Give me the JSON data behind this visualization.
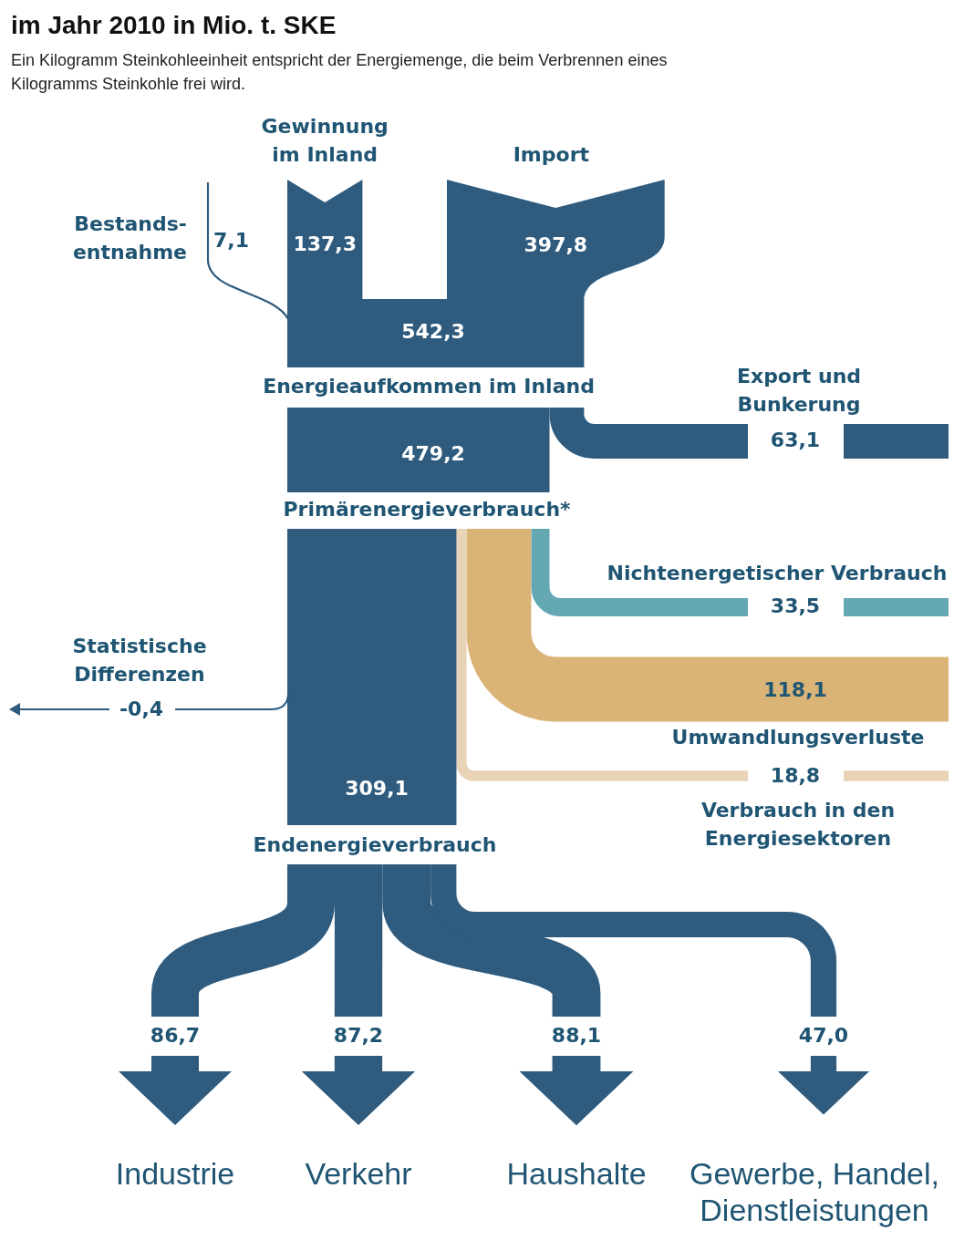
{
  "chart_data": {
    "type": "other",
    "title": "im Jahr 2010 in Mio. t. SKE",
    "subtitle": "Ein Kilogramm Steinkohleeinheit entspricht der Energiemenge, die beim Verbrennen eines Kilogramms Steinkohle frei wird.",
    "categories": [
      "Bestands-\nentnahme",
      "Gewinnung\nim Inland",
      "Import",
      "Energieaufkommen im Inland",
      "Export und\nBunkerung",
      "Primärenergieverbrauch*",
      "Nichtenergetischer Verbrauch",
      "Umwandlungsverluste",
      "Verbrauch in den\nEnergiesektoren",
      "Statistische\nDifferenzen",
      "Endenergieverbrauch",
      "Industrie",
      "Verkehr",
      "Haushalte",
      "Gewerbe, Handel,\nDienstleistungen"
    ],
    "values": [
      7.1,
      137.3,
      397.8,
      542.3,
      63.1,
      479.2,
      33.5,
      118.1,
      18.8,
      -0.4,
      309.1,
      86.7,
      87.2,
      88.1,
      47.0
    ],
    "value_labels": [
      "7,1",
      "137,3",
      "397,8",
      "542,3",
      "63,1",
      "479,2",
      "33,5",
      "118,1",
      "18,8",
      "-0,4",
      "309,1",
      "86,7",
      "87,2",
      "88,1",
      "47,0"
    ],
    "colors": [
      "#2e5b7e",
      "#2e5b7e",
      "#2e5b7e",
      "#2e5b7e",
      "#2e5b7e",
      "#2e5b7e",
      "#64a8b4",
      "#d9b476",
      "#e8d3b6",
      "#2e5b7e",
      "#2e5b7e",
      "#2e5b7e",
      "#2e5b7e",
      "#2e5b7e",
      "#2e5b7e"
    ]
  }
}
